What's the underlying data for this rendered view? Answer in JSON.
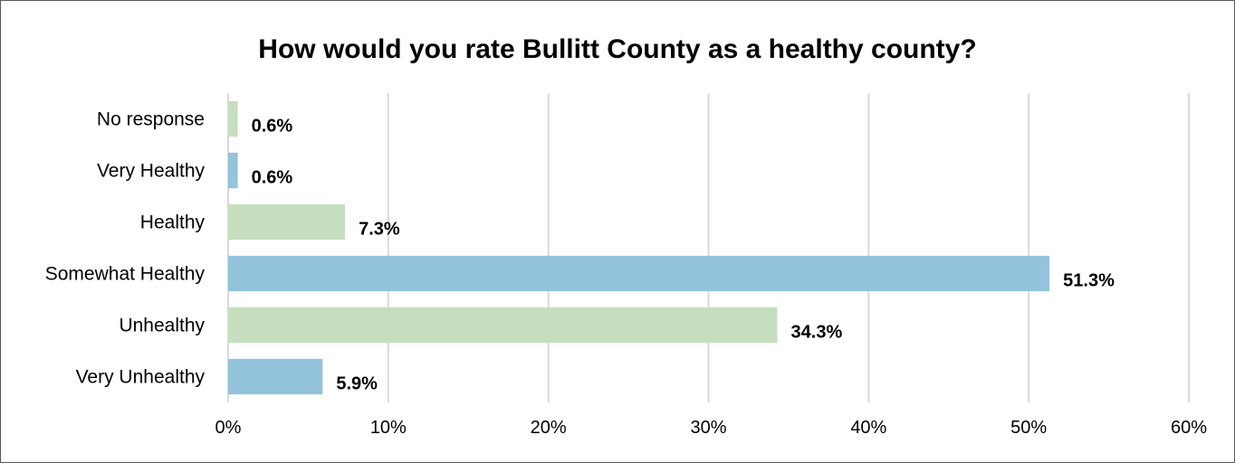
{
  "chart_data": {
    "type": "bar",
    "orientation": "horizontal",
    "title": "How would you rate Bullitt County as a healthy county?",
    "categories": [
      "No response",
      "Very Healthy",
      "Healthy",
      "Somewhat Healthy",
      "Unhealthy",
      "Very Unhealthy"
    ],
    "values": [
      0.6,
      0.6,
      7.3,
      51.3,
      34.3,
      5.9
    ],
    "value_labels": [
      "0.6%",
      "0.6%",
      "7.3%",
      "51.3%",
      "34.3%",
      "5.9%"
    ],
    "bar_colors": [
      "#c5dfbe",
      "#94c3dc",
      "#c5dfbe",
      "#94c3dc",
      "#c5dfbe",
      "#94c3dc"
    ],
    "xlim": [
      0,
      60
    ],
    "xticks": [
      0,
      10,
      20,
      30,
      40,
      50,
      60
    ],
    "xtick_labels": [
      "0%",
      "10%",
      "20%",
      "30%",
      "40%",
      "50%",
      "60%"
    ],
    "xlabel": "",
    "ylabel": "",
    "grid": "vertical",
    "legend": "none"
  }
}
